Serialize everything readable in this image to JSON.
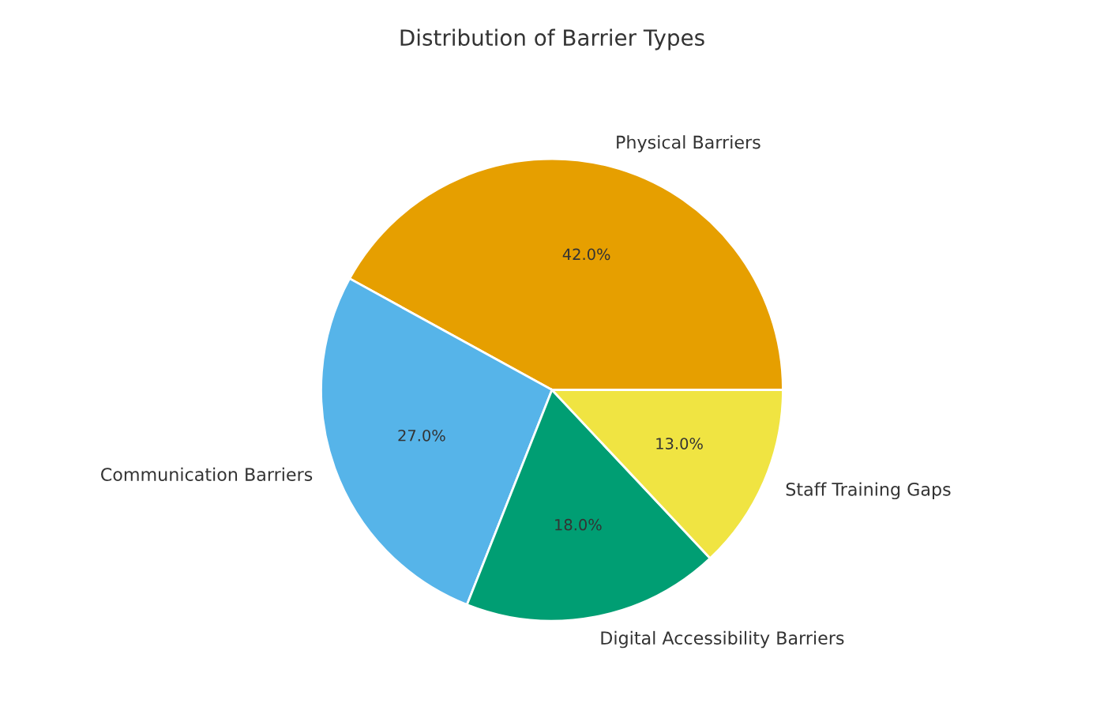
{
  "chart_data": {
    "type": "pie",
    "title": "Distribution of Barrier Types",
    "categories": [
      "Physical Barriers",
      "Communication Barriers",
      "Digital Accessibility Barriers",
      "Staff Training Gaps"
    ],
    "values": [
      42.0,
      27.0,
      18.0,
      13.0
    ],
    "colors": [
      "#e69f00",
      "#56b4e9",
      "#009e73",
      "#f0e442"
    ],
    "value_labels": [
      "42.0%",
      "27.0%",
      "18.0%",
      "13.0%"
    ]
  }
}
